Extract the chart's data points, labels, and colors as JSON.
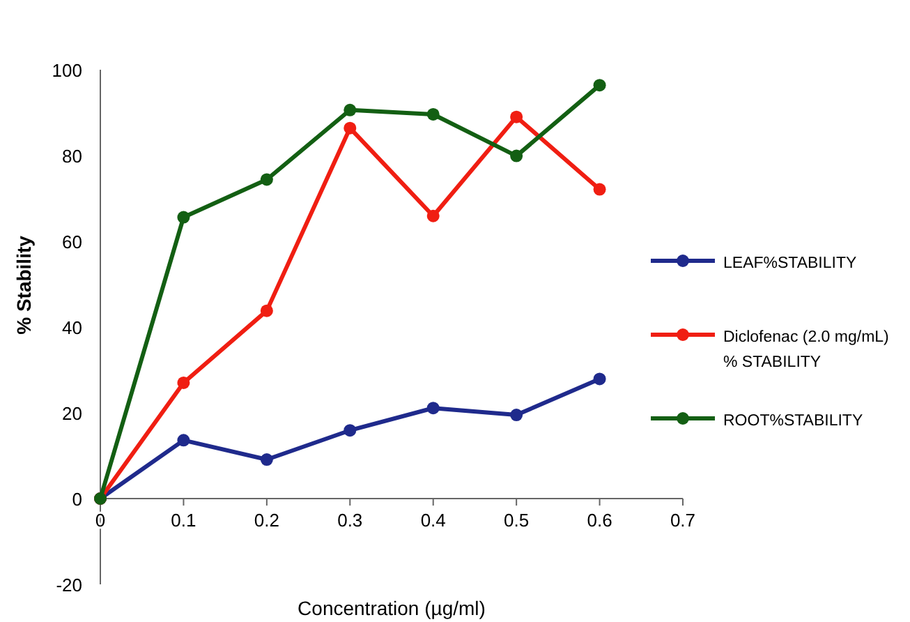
{
  "chart_data": {
    "type": "line",
    "xlabel": "Concentration  (µg/ml)",
    "ylabel": "% Stability",
    "x": [
      0,
      0.1,
      0.2,
      0.3,
      0.4,
      0.5,
      0.6
    ],
    "xlim": [
      0,
      0.7
    ],
    "xticks": [
      0,
      0.1,
      0.2,
      0.3,
      0.4,
      0.5,
      0.6,
      0.7
    ],
    "ylim": [
      -20,
      100
    ],
    "yticks": [
      -20,
      0,
      20,
      40,
      60,
      80,
      100
    ],
    "grid": false,
    "legend": "right",
    "marker": "circle",
    "line_style": "solid",
    "series": [
      {
        "name": "LEAF%STABILITY",
        "color": "#1f2a8c",
        "values": [
          0,
          13.6,
          9.1,
          15.9,
          21.1,
          19.5,
          27.9
        ]
      },
      {
        "name": "Diclofenac (2.0 mg/mL) % STABILITY",
        "color": "#f01e12",
        "values": [
          0,
          27,
          43.8,
          86.4,
          65.9,
          89,
          72.1
        ]
      },
      {
        "name": "ROOT%STABILITY",
        "color": "#135f13",
        "values": [
          0,
          65.6,
          74.4,
          90.6,
          89.6,
          79.9,
          96.4
        ]
      }
    ]
  }
}
